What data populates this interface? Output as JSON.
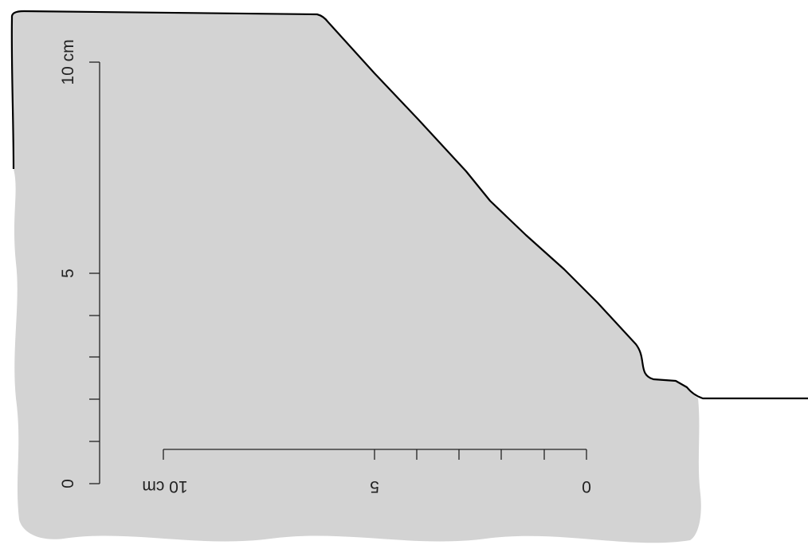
{
  "figure": {
    "section_fill": "#d3d3d3",
    "outline_color": "#000000",
    "vertical_scale": {
      "labels": [
        "0",
        "5",
        "10 cm"
      ],
      "values": [
        0,
        5,
        10
      ],
      "minor_ticks": [
        1,
        2,
        3,
        4
      ]
    },
    "horizontal_scale": {
      "labels": [
        "0",
        "5",
        "10 cm"
      ],
      "values": [
        0,
        5,
        10
      ],
      "minor_ticks": [
        1,
        2,
        3,
        4
      ],
      "orientation": "upside-down"
    }
  }
}
